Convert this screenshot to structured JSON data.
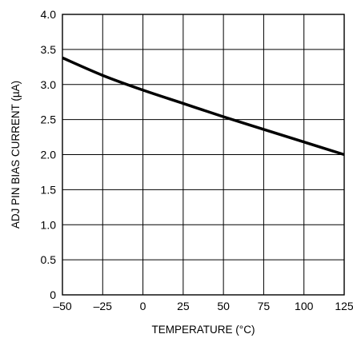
{
  "chart_data": {
    "type": "line",
    "title": "",
    "xlabel": "TEMPERATURE (°C)",
    "ylabel": "ADJ PIN BIAS CURRENT (µA)",
    "xlim": [
      -50,
      125
    ],
    "ylim": [
      0,
      4.0
    ],
    "grid": true,
    "legend": "none",
    "x_ticks": [
      -50,
      -25,
      0,
      25,
      50,
      75,
      100,
      125
    ],
    "x_tick_labels": [
      "–50",
      "–25",
      "0",
      "25",
      "50",
      "75",
      "100",
      "125"
    ],
    "y_ticks": [
      0,
      0.5,
      1.0,
      1.5,
      2.0,
      2.5,
      3.0,
      3.5,
      4.0
    ],
    "y_tick_labels": [
      "0",
      "0.5",
      "1.0",
      "1.5",
      "2.0",
      "2.5",
      "3.0",
      "3.5",
      "4.0"
    ],
    "series": [
      {
        "x": [
          -50,
          -25,
          0,
          25,
          50,
          75,
          100,
          125
        ],
        "y": [
          3.38,
          3.13,
          2.92,
          2.73,
          2.54,
          2.36,
          2.18,
          2.0
        ]
      }
    ],
    "colors": {
      "line": "#000000",
      "grid": "#000000",
      "background": "#ffffff"
    }
  }
}
